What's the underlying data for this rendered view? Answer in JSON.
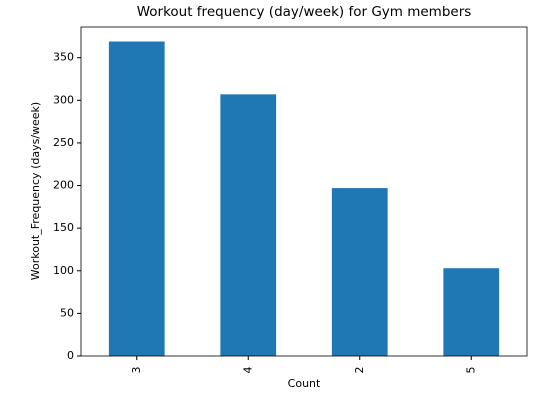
{
  "chart_data": {
    "type": "bar",
    "title": "Workout frequency (day/week) for Gym members",
    "x_label": "Count",
    "y_label": "Workout_Frequency (days/week)",
    "categories": [
      "3",
      "4",
      "2",
      "5"
    ],
    "values": [
      369,
      307,
      197,
      103
    ],
    "color": "#1f77b4",
    "ylim": [
      0,
      386
    ],
    "yticks": [
      0,
      50,
      100,
      150,
      200,
      250,
      300,
      350
    ]
  }
}
